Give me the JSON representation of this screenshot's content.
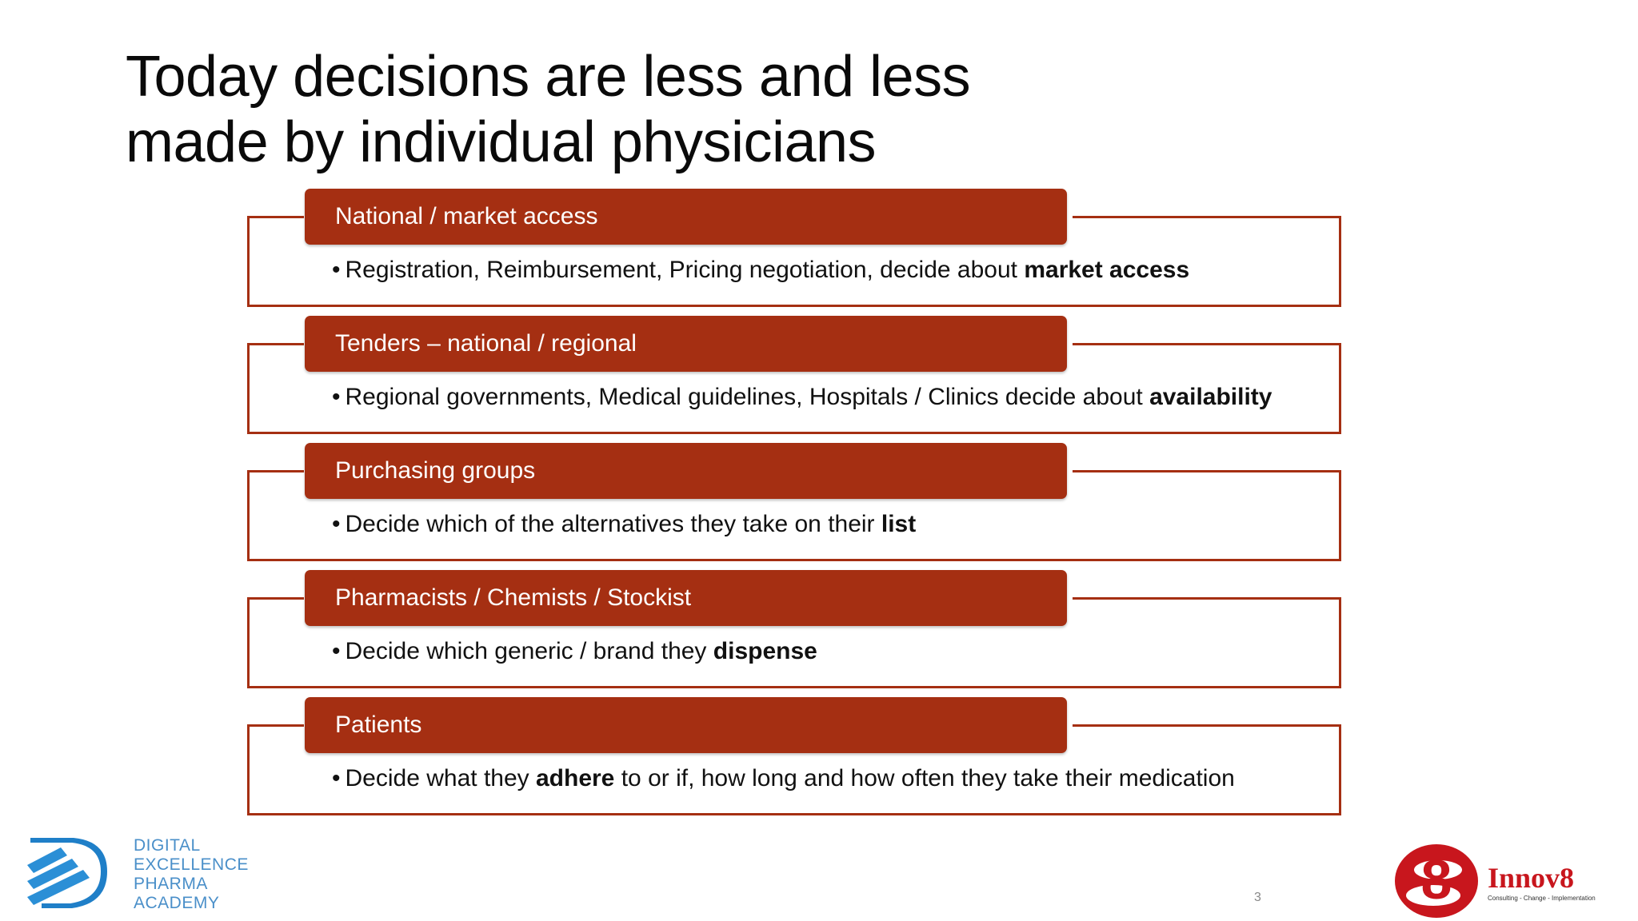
{
  "slide": {
    "title_line1": "Today decisions are less and less",
    "title_line2": "made by individual physicians",
    "page_number": "3"
  },
  "blocks": [
    {
      "header": "National / market access",
      "text_before": "Registration, Reimbursement, Pricing negotiation, decide about ",
      "text_bold": "market access",
      "text_after": ""
    },
    {
      "header": "Tenders – national / regional",
      "text_before": "Regional governments, Medical guidelines, Hospitals / Clinics decide about ",
      "text_bold": "availability",
      "text_after": ""
    },
    {
      "header": "Purchasing groups",
      "text_before": "Decide which of the alternatives they take on their ",
      "text_bold": "list",
      "text_after": ""
    },
    {
      "header": "Pharmacists / Chemists / Stockist",
      "text_before": "Decide which generic / brand they ",
      "text_bold": "dispense",
      "text_after": ""
    },
    {
      "header": "Patients",
      "text_before": "Decide what they ",
      "text_bold": "adhere",
      "text_after": " to or if, how long and how often they take their medication"
    }
  ],
  "footer": {
    "academy_line1": "DIGITAL",
    "academy_line2": "EXCELLENCE",
    "academy_line3": "PHARMA",
    "academy_line4": "ACADEMY",
    "innov8_name": "Innov8",
    "innov8_tagline": "Consulting - Change - Implementation",
    "innov8_digit": "8"
  },
  "colors": {
    "accent": "#a52f12",
    "academy_blue": "#4a8fc9",
    "logo_red": "#c8161d"
  },
  "bullet_glyph": "•"
}
